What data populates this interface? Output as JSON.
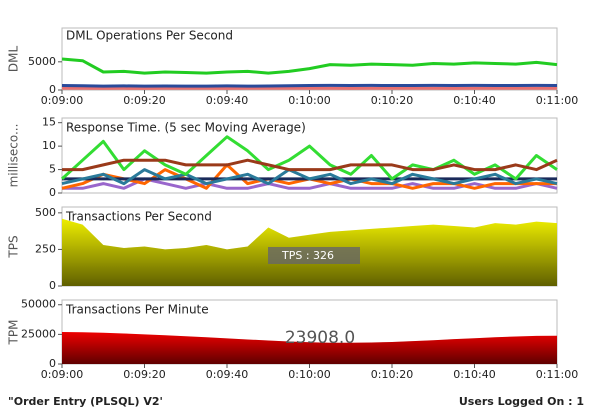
{
  "chart_data": [
    {
      "type": "line",
      "title": "DML Operations Per Second",
      "ylabel": "DML",
      "x": [
        540,
        545,
        550,
        555,
        560,
        565,
        570,
        575,
        580,
        585,
        590,
        595,
        600,
        605,
        610,
        615,
        620,
        625,
        630,
        635,
        640,
        645,
        650,
        655,
        660
      ],
      "xlim": [
        540,
        660
      ],
      "ylim": [
        0,
        11000
      ],
      "yticks": [
        0,
        5000
      ],
      "xticks": [
        {
          "value": 540,
          "label": "0:09:00"
        },
        {
          "value": 560,
          "label": "0:09:20"
        },
        {
          "value": 580,
          "label": "0:09:40"
        },
        {
          "value": 600,
          "label": "0:10:00"
        },
        {
          "value": 620,
          "label": "0:10:20"
        },
        {
          "value": 640,
          "label": "0:10:40"
        },
        {
          "value": 660,
          "label": "0:11:00"
        }
      ],
      "series": [
        {
          "color": "#e87070",
          "values": [
            300,
            300,
            280,
            300,
            290,
            300,
            310,
            300,
            290,
            300,
            300,
            310,
            300,
            300,
            290,
            300,
            310,
            300,
            300,
            290,
            300,
            310,
            300,
            300,
            300
          ]
        },
        {
          "color": "#2a4a9a",
          "values": [
            800,
            750,
            700,
            720,
            700,
            710,
            700,
            690,
            720,
            700,
            710,
            760,
            800,
            820,
            800,
            810,
            790,
            800,
            820,
            800,
            810,
            800,
            790,
            820,
            800
          ]
        },
        {
          "color": "#22cc22",
          "values": [
            5500,
            5200,
            3200,
            3300,
            3000,
            3200,
            3100,
            3000,
            3200,
            3300,
            3000,
            3300,
            3800,
            4500,
            4400,
            4600,
            4500,
            4400,
            4700,
            4600,
            4800,
            4700,
            4600,
            4900,
            4500
          ]
        }
      ]
    },
    {
      "type": "line",
      "title": "Response Time. (5 sec Moving Average)",
      "ylabel": "milliseco...",
      "x": [
        540,
        545,
        550,
        555,
        560,
        565,
        570,
        575,
        580,
        585,
        590,
        595,
        600,
        605,
        610,
        615,
        620,
        625,
        630,
        635,
        640,
        645,
        650,
        655,
        660
      ],
      "xlim": [
        540,
        660
      ],
      "ylim": [
        0,
        16
      ],
      "yticks": [
        0,
        5,
        10,
        15
      ],
      "series": [
        {
          "color": "#9966cc",
          "values": [
            1,
            1,
            2,
            1,
            3,
            2,
            1,
            2,
            1,
            1,
            2,
            1,
            1,
            2,
            1,
            1,
            1,
            2,
            1,
            1,
            2,
            1,
            1,
            2,
            1
          ]
        },
        {
          "color": "#ff6600",
          "values": [
            1,
            2,
            4,
            3,
            2,
            5,
            3,
            1,
            6,
            2,
            3,
            2,
            3,
            2,
            3,
            2,
            2,
            1,
            2,
            2,
            1,
            2,
            2,
            2,
            2
          ]
        },
        {
          "color": "#1a2a5a",
          "values": [
            3,
            3,
            3,
            3,
            3,
            3,
            3,
            3,
            3,
            3,
            3,
            3,
            3,
            3,
            3,
            3,
            3,
            3,
            3,
            3,
            3,
            3,
            3,
            3,
            3
          ]
        },
        {
          "color": "#2a7a9a",
          "values": [
            2,
            3,
            4,
            2,
            5,
            3,
            4,
            2,
            3,
            4,
            2,
            5,
            3,
            4,
            2,
            3,
            2,
            4,
            3,
            2,
            3,
            4,
            2,
            3,
            2
          ]
        },
        {
          "color": "#33dd33",
          "values": [
            3,
            7,
            11,
            5,
            9,
            6,
            4,
            8,
            12,
            9,
            5,
            7,
            10,
            6,
            4,
            8,
            3,
            6,
            5,
            7,
            4,
            6,
            3,
            8,
            5
          ]
        },
        {
          "color": "#9a3a1a",
          "values": [
            5,
            5,
            6,
            7,
            7,
            7,
            6,
            6,
            6,
            7,
            6,
            5,
            5,
            5,
            6,
            6,
            6,
            5,
            5,
            6,
            5,
            5,
            6,
            5,
            7
          ]
        }
      ]
    },
    {
      "type": "area",
      "title": "Transactions Per Second",
      "ylabel": "TPS",
      "annotation": "TPS : 326",
      "x": [
        540,
        545,
        550,
        555,
        560,
        565,
        570,
        575,
        580,
        585,
        590,
        595,
        600,
        605,
        610,
        615,
        620,
        625,
        630,
        635,
        640,
        645,
        650,
        655,
        660
      ],
      "xlim": [
        540,
        660
      ],
      "ylim": [
        0,
        540
      ],
      "yticks": [
        0,
        250,
        500
      ],
      "series": [
        {
          "color": "#eeee00",
          "values": [
            460,
            420,
            280,
            260,
            270,
            250,
            260,
            280,
            250,
            270,
            400,
            330,
            350,
            370,
            380,
            390,
            400,
            410,
            420,
            410,
            400,
            430,
            420,
            440,
            430
          ]
        }
      ]
    },
    {
      "type": "area",
      "title": "Transactions Per Minute",
      "ylabel": "TPM",
      "annotation": "23908.0",
      "x": [
        540,
        545,
        550,
        555,
        560,
        565,
        570,
        575,
        580,
        585,
        590,
        595,
        600,
        605,
        610,
        615,
        620,
        625,
        630,
        635,
        640,
        645,
        650,
        655,
        660
      ],
      "xlim": [
        540,
        660
      ],
      "ylim": [
        0,
        54000
      ],
      "yticks": [
        0,
        25000,
        50000
      ],
      "xticks": [
        {
          "value": 540,
          "label": "0:09:00"
        },
        {
          "value": 560,
          "label": "0:09:20"
        },
        {
          "value": 580,
          "label": "0:09:40"
        },
        {
          "value": 600,
          "label": "0:10:00"
        },
        {
          "value": 620,
          "label": "0:10:20"
        },
        {
          "value": 640,
          "label": "0:10:40"
        },
        {
          "value": 660,
          "label": "0:11:00"
        }
      ],
      "series": [
        {
          "color": "#ee0000",
          "values": [
            27000,
            26800,
            26300,
            25700,
            25000,
            24200,
            23400,
            22500,
            21600,
            20700,
            19800,
            19000,
            18400,
            18000,
            17900,
            18100,
            18600,
            19300,
            20100,
            21000,
            21800,
            22600,
            23200,
            23700,
            23900
          ]
        }
      ]
    }
  ],
  "footer": {
    "left": "\"Order Entry (PLSQL) V2'",
    "right": "Users Logged On : 1"
  }
}
